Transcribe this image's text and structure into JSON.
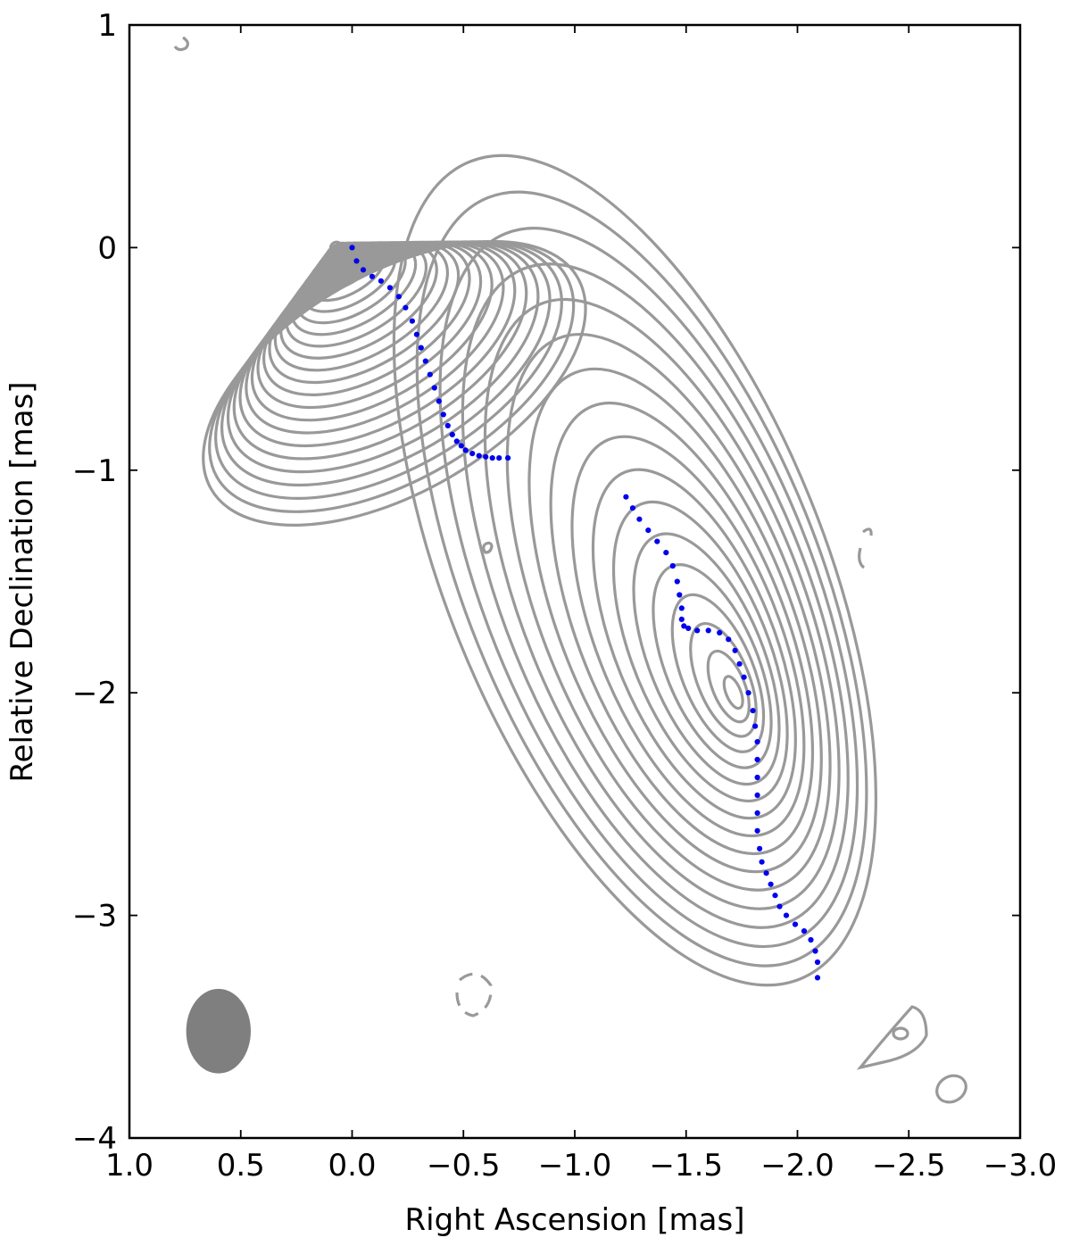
{
  "chart_data": {
    "type": "scatter",
    "title": "",
    "xlabel": "Right Ascension [mas]",
    "ylabel": "Relative Declination [mas]",
    "xlim": [
      1.0,
      -3.0
    ],
    "ylim": [
      -4,
      1
    ],
    "x_ticks": [
      "1.0",
      "0.5",
      "0.0",
      "−0.5",
      "−1.0",
      "−1.5",
      "−2.0",
      "−2.5",
      "−3.0"
    ],
    "x_tick_values": [
      1.0,
      0.5,
      0.0,
      -0.5,
      -1.0,
      -1.5,
      -2.0,
      -2.5,
      -3.0
    ],
    "y_ticks": [
      "1",
      "0",
      "−1",
      "−2",
      "−3",
      "−4"
    ],
    "y_tick_values": [
      1,
      0,
      -1,
      -2,
      -3,
      -4
    ],
    "grid": false,
    "contour_color": "#999999",
    "ridge_color": "#0000ee",
    "beam_color": "#7f7f7f",
    "beam": {
      "center_x": 0.6,
      "center_y": -3.52,
      "width": 0.29,
      "height": 0.38
    },
    "components": [
      {
        "peak": [
          0.08,
          0.02
        ],
        "levels": 24,
        "shape": [
          -0.19,
          -0.61,
          0.95,
          0.49,
          30
        ]
      },
      {
        "peak": [
          -1.73,
          -2.02
        ],
        "levels": 17,
        "shape": [
          -1.27,
          -1.45,
          0.85,
          1.98,
          22
        ]
      }
    ],
    "series": [
      {
        "x": [
          0.0,
          -0.02,
          -0.05,
          -0.09,
          -0.13,
          -0.17,
          -0.21,
          -0.24,
          -0.27,
          -0.29,
          -0.31,
          -0.33,
          -0.35,
          -0.37,
          -0.39,
          -0.41,
          -0.43,
          -0.45,
          -0.47,
          -0.49,
          -0.51,
          -0.54,
          -0.57,
          -0.6,
          -0.63,
          -0.66,
          -0.7
        ],
        "y": [
          0.0,
          -0.06,
          -0.1,
          -0.13,
          -0.15,
          -0.18,
          -0.22,
          -0.27,
          -0.33,
          -0.39,
          -0.45,
          -0.51,
          -0.57,
          -0.63,
          -0.69,
          -0.75,
          -0.8,
          -0.84,
          -0.87,
          -0.89,
          -0.91,
          -0.925,
          -0.935,
          -0.94,
          -0.945,
          -0.945,
          -0.945
        ]
      },
      {
        "x": [
          -1.23,
          -1.26,
          -1.29,
          -1.33,
          -1.37,
          -1.41,
          -1.44,
          -1.46,
          -1.47,
          -1.48,
          -1.48,
          -1.49,
          -1.51,
          -1.55,
          -1.6,
          -1.65,
          -1.69,
          -1.72,
          -1.74,
          -1.76,
          -1.78,
          -1.8,
          -1.81,
          -1.82,
          -1.82,
          -1.82,
          -1.82,
          -1.82,
          -1.82,
          -1.83,
          -1.84,
          -1.86,
          -1.88,
          -1.9,
          -1.92,
          -1.95,
          -1.99,
          -2.03,
          -2.06,
          -2.08,
          -2.09,
          -2.09
        ],
        "y": [
          -1.12,
          -1.17,
          -1.22,
          -1.27,
          -1.32,
          -1.37,
          -1.43,
          -1.5,
          -1.56,
          -1.62,
          -1.67,
          -1.7,
          -1.71,
          -1.72,
          -1.72,
          -1.73,
          -1.76,
          -1.81,
          -1.87,
          -1.93,
          -2.0,
          -2.08,
          -2.15,
          -2.22,
          -2.3,
          -2.38,
          -2.46,
          -2.54,
          -2.62,
          -2.7,
          -2.76,
          -2.81,
          -2.86,
          -2.91,
          -2.96,
          -3.0,
          -3.04,
          -3.07,
          -3.11,
          -3.16,
          -3.21,
          -3.28
        ]
      }
    ]
  }
}
